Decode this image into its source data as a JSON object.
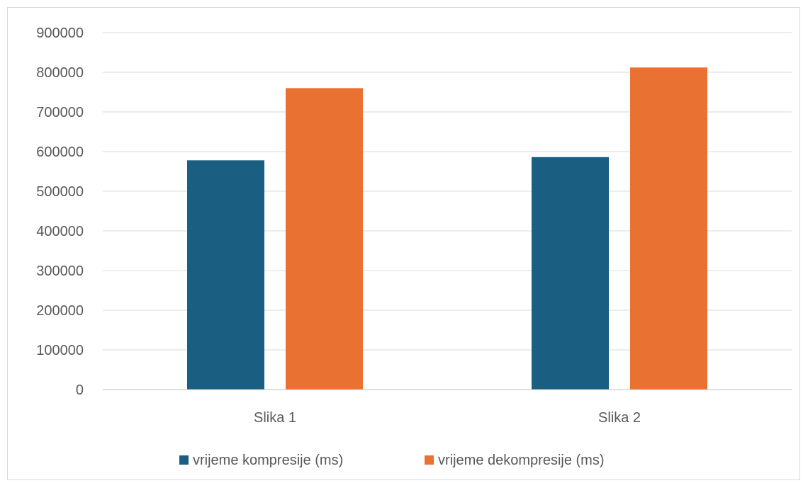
{
  "chart_data": {
    "type": "bar",
    "title": "",
    "xlabel": "",
    "ylabel": "",
    "categories": [
      "Slika 1",
      "Slika 2"
    ],
    "series": [
      {
        "name": "vrijeme kompresije (ms)",
        "values": [
          578000,
          586000
        ],
        "color": "#1a5e82"
      },
      {
        "name": "vrijeme dekompresije (ms)",
        "values": [
          760000,
          812000
        ],
        "color": "#e97132"
      }
    ],
    "ylim": [
      0,
      900000
    ],
    "yticks": [
      "0",
      "100000",
      "200000",
      "300000",
      "400000",
      "500000",
      "600000",
      "700000",
      "800000",
      "900000"
    ],
    "grid": true,
    "legend_position": "bottom"
  }
}
